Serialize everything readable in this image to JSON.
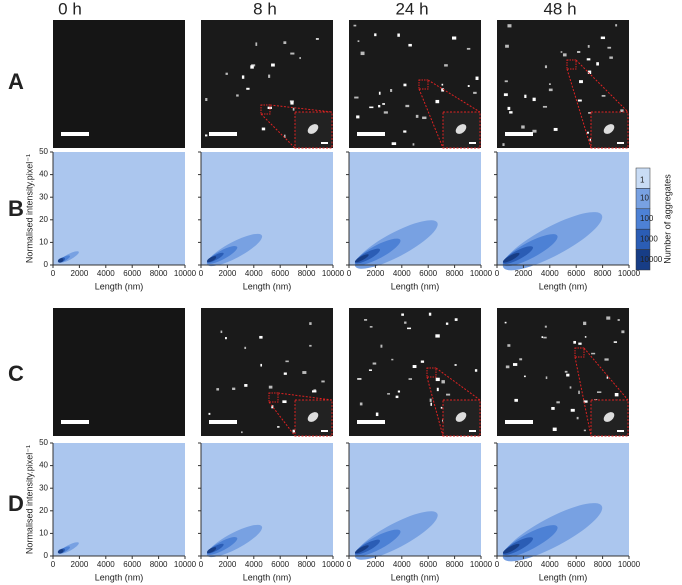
{
  "column_headers": [
    "0 h",
    "8 h",
    "24 h",
    "48 h"
  ],
  "row_labels": [
    "A",
    "B",
    "C",
    "D"
  ],
  "plot_axes": {
    "xlabel": "Length (nm)",
    "ylabel": "Normalised intensity.pixel⁻¹",
    "xlim": [
      0,
      10000
    ],
    "ylim": [
      0,
      50
    ],
    "xticks": [
      0,
      2000,
      4000,
      6000,
      8000,
      10000
    ],
    "yticks": [
      0,
      10,
      20,
      30,
      40,
      50
    ]
  },
  "colorbar": {
    "title": "Number of aggregates",
    "ticks": [
      1,
      10,
      100,
      1000,
      10000
    ]
  }
}
